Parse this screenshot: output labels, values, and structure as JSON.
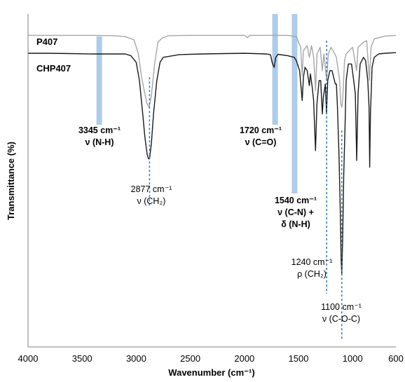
{
  "chart_data": {
    "type": "line",
    "title": "",
    "xlabel": "Wavenumber (cm⁻¹)",
    "ylabel": "Transmittance (%)",
    "xlim": [
      4000,
      600
    ],
    "x_reversed": true,
    "x_ticks": [
      "4000",
      "3500",
      "3000",
      "2500",
      "2000",
      "1500",
      "1000",
      "600"
    ],
    "y_ticks_shown": false,
    "grid": false,
    "legend": "none (series labelled directly at upper left)",
    "series": [
      {
        "name": "P407",
        "color": "#a6a6a6",
        "y_units": "relative transmittance (0 = top of plot area, 1 = bottom)",
        "points": [
          [
            4000,
            0.064
          ],
          [
            3800,
            0.064
          ],
          [
            3600,
            0.064
          ],
          [
            3400,
            0.064
          ],
          [
            3200,
            0.065
          ],
          [
            3100,
            0.068
          ],
          [
            3020,
            0.078
          ],
          [
            2980,
            0.12
          ],
          [
            2950,
            0.19
          ],
          [
            2920,
            0.24
          ],
          [
            2900,
            0.27
          ],
          [
            2880,
            0.28
          ],
          [
            2860,
            0.245
          ],
          [
            2830,
            0.15
          ],
          [
            2800,
            0.085
          ],
          [
            2760,
            0.072
          ],
          [
            2700,
            0.065
          ],
          [
            2500,
            0.064
          ],
          [
            2300,
            0.064
          ],
          [
            2000,
            0.064
          ],
          [
            1970,
            0.071
          ],
          [
            1950,
            0.064
          ],
          [
            1800,
            0.064
          ],
          [
            1600,
            0.064
          ],
          [
            1520,
            0.068
          ],
          [
            1480,
            0.1
          ],
          [
            1466,
            0.185
          ],
          [
            1455,
            0.11
          ],
          [
            1420,
            0.095
          ],
          [
            1400,
            0.13
          ],
          [
            1380,
            0.095
          ],
          [
            1360,
            0.13
          ],
          [
            1342,
            0.23
          ],
          [
            1330,
            0.12
          ],
          [
            1300,
            0.1
          ],
          [
            1280,
            0.17
          ],
          [
            1265,
            0.12
          ],
          [
            1240,
            0.2
          ],
          [
            1225,
            0.12
          ],
          [
            1200,
            0.1
          ],
          [
            1180,
            0.11
          ],
          [
            1150,
            0.13
          ],
          [
            1120,
            0.2
          ],
          [
            1110,
            0.27
          ],
          [
            1100,
            0.28
          ],
          [
            1090,
            0.25
          ],
          [
            1075,
            0.14
          ],
          [
            1060,
            0.12
          ],
          [
            1000,
            0.1
          ],
          [
            963,
            0.17
          ],
          [
            950,
            0.1
          ],
          [
            900,
            0.085
          ],
          [
            870,
            0.08
          ],
          [
            845,
            0.2
          ],
          [
            830,
            0.1
          ],
          [
            800,
            0.075
          ],
          [
            700,
            0.066
          ],
          [
            600,
            0.064
          ]
        ]
      },
      {
        "name": "CHP407",
        "color": "#1a1a1a",
        "y_units": "relative transmittance (0 = top of plot area, 1 = bottom)",
        "points": [
          [
            4000,
            0.118
          ],
          [
            3800,
            0.118
          ],
          [
            3600,
            0.119
          ],
          [
            3400,
            0.12
          ],
          [
            3200,
            0.12
          ],
          [
            3100,
            0.12
          ],
          [
            3050,
            0.125
          ],
          [
            3000,
            0.145
          ],
          [
            2970,
            0.2
          ],
          [
            2940,
            0.3
          ],
          [
            2920,
            0.37
          ],
          [
            2900,
            0.42
          ],
          [
            2887,
            0.435
          ],
          [
            2877,
            0.435
          ],
          [
            2860,
            0.39
          ],
          [
            2840,
            0.3
          ],
          [
            2810,
            0.2
          ],
          [
            2780,
            0.145
          ],
          [
            2750,
            0.13
          ],
          [
            2600,
            0.122
          ],
          [
            2400,
            0.12
          ],
          [
            2000,
            0.118
          ],
          [
            1800,
            0.12
          ],
          [
            1760,
            0.122
          ],
          [
            1740,
            0.15
          ],
          [
            1725,
            0.16
          ],
          [
            1710,
            0.13
          ],
          [
            1690,
            0.121
          ],
          [
            1600,
            0.125
          ],
          [
            1540,
            0.13
          ],
          [
            1520,
            0.14
          ],
          [
            1490,
            0.17
          ],
          [
            1466,
            0.26
          ],
          [
            1455,
            0.19
          ],
          [
            1440,
            0.16
          ],
          [
            1420,
            0.17
          ],
          [
            1400,
            0.215
          ],
          [
            1390,
            0.18
          ],
          [
            1373,
            0.22
          ],
          [
            1360,
            0.26
          ],
          [
            1343,
            0.41
          ],
          [
            1330,
            0.27
          ],
          [
            1310,
            0.2
          ],
          [
            1295,
            0.2
          ],
          [
            1280,
            0.3
          ],
          [
            1270,
            0.25
          ],
          [
            1252,
            0.21
          ],
          [
            1241,
            0.3
          ],
          [
            1230,
            0.2
          ],
          [
            1210,
            0.17
          ],
          [
            1190,
            0.17
          ],
          [
            1160,
            0.21
          ],
          [
            1150,
            0.21
          ],
          [
            1140,
            0.28
          ],
          [
            1125,
            0.43
          ],
          [
            1115,
            0.58
          ],
          [
            1106,
            0.74
          ],
          [
            1100,
            0.78
          ],
          [
            1092,
            0.68
          ],
          [
            1082,
            0.48
          ],
          [
            1070,
            0.34
          ],
          [
            1060,
            0.2
          ],
          [
            1040,
            0.15
          ],
          [
            1010,
            0.15
          ],
          [
            990,
            0.2
          ],
          [
            975,
            0.24
          ],
          [
            962,
            0.44
          ],
          [
            950,
            0.24
          ],
          [
            930,
            0.15
          ],
          [
            900,
            0.13
          ],
          [
            880,
            0.14
          ],
          [
            860,
            0.2
          ],
          [
            848,
            0.28
          ],
          [
            842,
            0.46
          ],
          [
            835,
            0.3
          ],
          [
            820,
            0.16
          ],
          [
            800,
            0.13
          ],
          [
            760,
            0.12
          ],
          [
            700,
            0.118
          ],
          [
            600,
            0.116
          ]
        ]
      }
    ],
    "highlight_bands": [
      {
        "center": 3345,
        "width_cm": 45,
        "color": "#9dc3e6"
      },
      {
        "center": 1720,
        "width_cm": 45,
        "color": "#9dc3e6"
      },
      {
        "center": 1540,
        "width_cm": 45,
        "color": "#9dc3e6"
      }
    ],
    "marker_lines": [
      {
        "x": 2877,
        "y_top": 0.19,
        "y_bottom": 0.58,
        "color": "#2e75b6"
      },
      {
        "x": 1240,
        "y_top": 0.08,
        "y_bottom": 0.84,
        "color": "#2e75b6"
      },
      {
        "x": 1100,
        "y_top": 0.35,
        "y_bottom": 0.98,
        "color": "#2e75b6"
      }
    ],
    "annotations": [
      {
        "id": "a3345",
        "bold": true,
        "lines": [
          "3345 cm⁻¹",
          "ν (N-H)"
        ]
      },
      {
        "id": "a2877",
        "bold": false,
        "lines": [
          "2877 cm⁻¹",
          "ν (CH₂)"
        ]
      },
      {
        "id": "a1720",
        "bold": true,
        "lines": [
          "1720 cm⁻¹",
          "ν (C=O)"
        ]
      },
      {
        "id": "a1540",
        "bold": true,
        "lines": [
          "1540 cm⁻¹",
          "ν (C-N) +",
          "δ (N-H)"
        ]
      },
      {
        "id": "a1240",
        "bold": false,
        "lines": [
          "1240 cm⁻¹",
          "ρ (CH₂)"
        ]
      },
      {
        "id": "a1100",
        "bold": false,
        "lines": [
          "1100 cm⁻¹",
          "ν (C-O-C)"
        ]
      }
    ]
  }
}
